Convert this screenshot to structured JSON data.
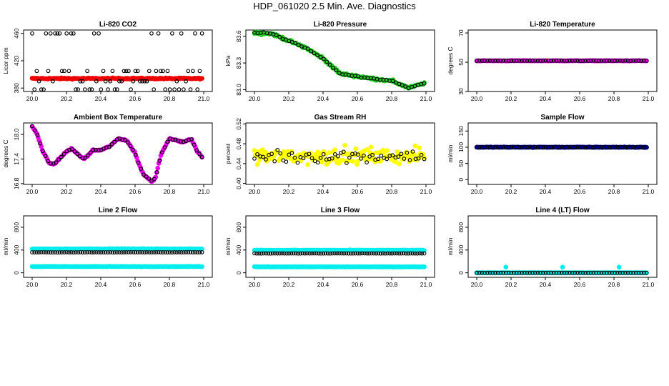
{
  "title": "HDP_061020  2.5 Min. Ave. Diagnostics",
  "colors": {
    "black": "#000000",
    "red": "#ee0000",
    "green": "#22cc22",
    "magenta": "#ee00ee",
    "yellow": "#ffff00",
    "navy": "#0000aa",
    "cyan": "#00eeee"
  },
  "chart_data": [
    {
      "name": "li820-co2",
      "type": "scatter",
      "title": "Li-820 CO2",
      "xlabel": "",
      "ylabel": "Licor ppm",
      "xlim": [
        20.0,
        21.0
      ],
      "ylim": [
        375,
        465
      ],
      "xticks": [
        20.0,
        20.2,
        20.4,
        20.6,
        20.8,
        21.0
      ],
      "xtick_labels": [
        "20.0",
        "20.2",
        "20.4",
        "20.6",
        "20.8",
        "21.0"
      ],
      "yticks": [
        380,
        420,
        460
      ],
      "ytick_labels": [
        "380",
        "420",
        "460"
      ],
      "series": [
        {
          "name": "fill",
          "marker": "filled",
          "color": "#ee0000",
          "shape": "flat",
          "base": 394,
          "noise": 1
        },
        {
          "name": "avg",
          "marker": "open",
          "color": "#000000",
          "shape": "multi",
          "levels": [
            378,
            390,
            405,
            460
          ],
          "count": 75
        }
      ]
    },
    {
      "name": "li820-pressure",
      "type": "scatter",
      "title": "Li-820 Pressure",
      "xlabel": "",
      "ylabel": "kPa",
      "xlim": [
        20.0,
        21.0
      ],
      "ylim": [
        82.98,
        83.67
      ],
      "xticks": [
        20.0,
        20.2,
        20.4,
        20.6,
        20.8,
        21.0
      ],
      "xtick_labels": [
        "20.0",
        "20.2",
        "20.4",
        "20.6",
        "20.8",
        "21.0"
      ],
      "yticks": [
        83.0,
        83.3,
        83.6
      ],
      "ytick_labels": [
        "83.0",
        "83.3",
        "83.6"
      ],
      "keypoints": [
        [
          20.0,
          83.64
        ],
        [
          20.1,
          83.63
        ],
        [
          20.2,
          83.55
        ],
        [
          20.3,
          83.47
        ],
        [
          20.4,
          83.35
        ],
        [
          20.5,
          83.18
        ],
        [
          20.6,
          83.15
        ],
        [
          20.7,
          83.12
        ],
        [
          20.8,
          83.1
        ],
        [
          20.9,
          83.02
        ],
        [
          21.0,
          83.08
        ]
      ],
      "series": [
        {
          "name": "fill",
          "marker": "filled",
          "color": "#22cc22",
          "shape": "curve",
          "noise": 0.015
        },
        {
          "name": "avg",
          "marker": "open",
          "color": "#000000",
          "shape": "curve",
          "noise": 0.008,
          "count": 55
        }
      ]
    },
    {
      "name": "li820-temperature",
      "type": "scatter",
      "title": "Li-820 Temperature",
      "xlabel": "",
      "ylabel": "degrees C",
      "xlim": [
        20.0,
        21.0
      ],
      "ylim": [
        30,
        72
      ],
      "xticks": [
        20.0,
        20.2,
        20.4,
        20.6,
        20.8,
        21.0
      ],
      "xtick_labels": [
        "20.0",
        "20.2",
        "20.4",
        "20.6",
        "20.8",
        "21.0"
      ],
      "yticks": [
        30,
        50,
        70
      ],
      "ytick_labels": [
        "30",
        "50",
        "70"
      ],
      "series": [
        {
          "name": "fill",
          "marker": "filled",
          "color": "#ee00ee",
          "shape": "flat",
          "base": 51,
          "noise": 0.2
        },
        {
          "name": "avg",
          "marker": "open",
          "color": "#000000",
          "shape": "flat",
          "base": 51,
          "noise": 0.1,
          "count": 65
        }
      ]
    },
    {
      "name": "ambient-box-temperature",
      "type": "scatter",
      "title": "Ambient Box Temperature",
      "xlabel": "",
      "ylabel": "degrees C",
      "xlim": [
        20.0,
        21.0
      ],
      "ylim": [
        16.78,
        18.28
      ],
      "xticks": [
        20.0,
        20.2,
        20.4,
        20.6,
        20.8,
        21.0
      ],
      "xtick_labels": [
        "20.0",
        "20.2",
        "20.4",
        "20.6",
        "20.8",
        "21.0"
      ],
      "yticks": [
        16.8,
        17.4,
        18.0
      ],
      "ytick_labels": [
        "16.8",
        "17.4",
        "18.0"
      ],
      "keypoints": [
        [
          20.0,
          18.2
        ],
        [
          20.03,
          18.0
        ],
        [
          20.06,
          17.6
        ],
        [
          20.1,
          17.3
        ],
        [
          20.13,
          17.28
        ],
        [
          20.2,
          17.58
        ],
        [
          20.23,
          17.65
        ],
        [
          20.27,
          17.5
        ],
        [
          20.3,
          17.4
        ],
        [
          20.33,
          17.5
        ],
        [
          20.35,
          17.62
        ],
        [
          20.4,
          17.62
        ],
        [
          20.45,
          17.7
        ],
        [
          20.5,
          17.9
        ],
        [
          20.55,
          17.85
        ],
        [
          20.6,
          17.55
        ],
        [
          20.62,
          17.3
        ],
        [
          20.65,
          17.02
        ],
        [
          20.7,
          16.85
        ],
        [
          20.72,
          16.95
        ],
        [
          20.75,
          17.5
        ],
        [
          20.8,
          17.9
        ],
        [
          20.85,
          17.85
        ],
        [
          20.88,
          17.82
        ],
        [
          20.93,
          17.88
        ],
        [
          20.96,
          17.6
        ],
        [
          20.99,
          17.45
        ]
      ],
      "series": [
        {
          "name": "fill",
          "marker": "filled",
          "color": "#ee00ee",
          "shape": "curve",
          "noise": 0.02
        },
        {
          "name": "avg",
          "marker": "open",
          "color": "#000000",
          "shape": "curve",
          "noise": 0.01,
          "count": 65
        }
      ]
    },
    {
      "name": "gas-stream-rh",
      "type": "scatter",
      "title": "Gas Stream RH",
      "xlabel": "",
      "ylabel": "percent",
      "xlim": [
        20.0,
        21.0
      ],
      "ylim": [
        0.398,
        0.522
      ],
      "xticks": [
        20.0,
        20.2,
        20.4,
        20.6,
        20.8,
        21.0
      ],
      "xtick_labels": [
        "20.0",
        "20.2",
        "20.4",
        "20.6",
        "20.8",
        "21.0"
      ],
      "yticks": [
        0.4,
        0.44,
        0.48,
        0.52
      ],
      "ytick_labels": [
        "0.40",
        "0.44",
        "0.48",
        "0.52"
      ],
      "series": [
        {
          "name": "fill",
          "marker": "filled",
          "color": "#ffff00",
          "shape": "flat",
          "base": 0.455,
          "noise": 0.018
        },
        {
          "name": "avg",
          "marker": "open",
          "color": "#000000",
          "shape": "flat",
          "base": 0.455,
          "noise": 0.015,
          "count": 60
        }
      ]
    },
    {
      "name": "sample-flow",
      "type": "scatter",
      "title": "Sample Flow",
      "xlabel": "",
      "ylabel": "ml/min",
      "xlim": [
        20.0,
        21.0
      ],
      "ylim": [
        -15,
        175
      ],
      "xticks": [
        20.0,
        20.2,
        20.4,
        20.6,
        20.8,
        21.0
      ],
      "xtick_labels": [
        "20.0",
        "20.2",
        "20.4",
        "20.6",
        "20.8",
        "21.0"
      ],
      "yticks": [
        0,
        50,
        100,
        150
      ],
      "ytick_labels": [
        "0",
        "50",
        "100",
        "150"
      ],
      "series": [
        {
          "name": "fill",
          "marker": "filled",
          "color": "#0000aa",
          "shape": "flat",
          "base": 100,
          "noise": 1
        },
        {
          "name": "avg",
          "marker": "open",
          "color": "#000000",
          "shape": "flat",
          "base": 100,
          "noise": 0.6,
          "count": 65
        }
      ]
    },
    {
      "name": "line2-flow",
      "type": "scatter",
      "title": "Line 2 Flow",
      "xlabel": "",
      "ylabel": "ml/min",
      "xlim": [
        20.0,
        21.0
      ],
      "ylim": [
        -80,
        1000
      ],
      "xticks": [
        20.0,
        20.2,
        20.4,
        20.6,
        20.8,
        21.0
      ],
      "xtick_labels": [
        "20.0",
        "20.2",
        "20.4",
        "20.6",
        "20.8",
        "21.0"
      ],
      "yticks": [
        0,
        400,
        800
      ],
      "ytick_labels": [
        "0",
        "400",
        "800"
      ],
      "series": [
        {
          "name": "fill-high",
          "marker": "filled",
          "color": "#00eeee",
          "shape": "flat",
          "base": 420,
          "noise": 6
        },
        {
          "name": "fill-low",
          "marker": "filled",
          "color": "#00eeee",
          "shape": "flat",
          "base": 110,
          "noise": 4
        },
        {
          "name": "avg",
          "marker": "open",
          "color": "#000000",
          "shape": "flat",
          "base": 360,
          "noise": 2,
          "count": 75
        }
      ]
    },
    {
      "name": "line3-flow",
      "type": "scatter",
      "title": "Line 3 Flow",
      "xlabel": "",
      "ylabel": "ml/min",
      "xlim": [
        20.0,
        21.0
      ],
      "ylim": [
        -80,
        1000
      ],
      "xticks": [
        20.0,
        20.2,
        20.4,
        20.6,
        20.8,
        21.0
      ],
      "xtick_labels": [
        "20.0",
        "20.2",
        "20.4",
        "20.6",
        "20.8",
        "21.0"
      ],
      "yticks": [
        0,
        400,
        800
      ],
      "ytick_labels": [
        "0",
        "400",
        "800"
      ],
      "series": [
        {
          "name": "fill-high",
          "marker": "filled",
          "color": "#00eeee",
          "shape": "flat",
          "base": 395,
          "noise": 6
        },
        {
          "name": "fill-low",
          "marker": "filled",
          "color": "#00eeee",
          "shape": "flat",
          "base": 105,
          "noise": 4
        },
        {
          "name": "avg",
          "marker": "open",
          "color": "#000000",
          "shape": "flat",
          "base": 340,
          "noise": 2,
          "count": 75
        }
      ]
    },
    {
      "name": "line4-lt-flow",
      "type": "scatter",
      "title": "Line 4 (LT) Flow",
      "xlabel": "",
      "ylabel": "ml/min",
      "xlim": [
        20.0,
        21.0
      ],
      "ylim": [
        -80,
        1000
      ],
      "xticks": [
        20.0,
        20.2,
        20.4,
        20.6,
        20.8,
        21.0
      ],
      "xtick_labels": [
        "20.0",
        "20.2",
        "20.4",
        "20.6",
        "20.8",
        "21.0"
      ],
      "yticks": [
        0,
        400,
        800
      ],
      "ytick_labels": [
        "0",
        "400",
        "800"
      ],
      "series": [
        {
          "name": "fill",
          "marker": "filled",
          "color": "#00eeee",
          "shape": "flat",
          "base": 0,
          "noise": 1
        },
        {
          "name": "spikes",
          "marker": "filled",
          "color": "#00eeee",
          "shape": "points",
          "points": [
            [
              20.17,
              100
            ],
            [
              20.5,
              100
            ],
            [
              20.83,
              100
            ]
          ]
        },
        {
          "name": "avg",
          "marker": "open",
          "color": "#000000",
          "shape": "flat",
          "base": 0,
          "noise": 0.5,
          "count": 65
        }
      ]
    }
  ]
}
